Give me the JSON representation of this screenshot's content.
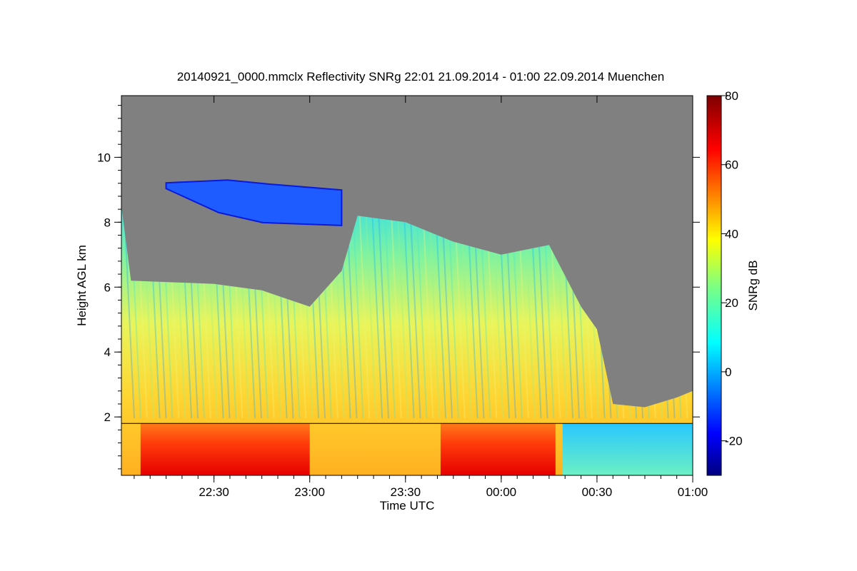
{
  "chart_data": {
    "type": "heatmap",
    "title": "20140921_0000.mmclx Reflectivity SNRg   22:01 21.09.2014 - 01:00 22.09.2014 Muenchen",
    "xlabel": "Time UTC",
    "ylabel": "Height AGL km",
    "colorbar_label": "SNRg dB",
    "xlim": [
      "22:01",
      "01:00"
    ],
    "ylim": [
      0.2,
      11.9
    ],
    "clim": [
      -30,
      80
    ],
    "x_ticks": [
      "22:30",
      "23:00",
      "23:30",
      "00:00",
      "00:30",
      "01:00"
    ],
    "y_ticks": [
      2,
      4,
      6,
      8,
      10
    ],
    "colorbar_ticks": [
      -20,
      0,
      20,
      40,
      60,
      80
    ],
    "colormap": "jet",
    "no_signal_color": "#808080",
    "grid": false,
    "echo_top_km": [
      {
        "time": "22:01",
        "height": 8.5
      },
      {
        "time": "22:04",
        "height": 6.2
      },
      {
        "time": "22:30",
        "height": 6.1
      },
      {
        "time": "22:45",
        "height": 5.9
      },
      {
        "time": "23:00",
        "height": 5.4
      },
      {
        "time": "23:10",
        "height": 6.5
      },
      {
        "time": "23:15",
        "height": 8.2
      },
      {
        "time": "23:30",
        "height": 8.0
      },
      {
        "time": "23:45",
        "height": 7.4
      },
      {
        "time": "00:00",
        "height": 7.0
      },
      {
        "time": "00:15",
        "height": 7.3
      },
      {
        "time": "00:25",
        "height": 5.4
      },
      {
        "time": "00:30",
        "height": 4.7
      },
      {
        "time": "00:35",
        "height": 2.4
      },
      {
        "time": "00:45",
        "height": 2.3
      },
      {
        "time": "00:55",
        "height": 2.6
      },
      {
        "time": "01:00",
        "height": 2.8
      }
    ],
    "cirrus_layer_km": {
      "from": "22:15",
      "to": "23:10",
      "bottom": 7.9,
      "top": 9.3
    },
    "strong_echo_periods": [
      {
        "from": "22:07",
        "to": "23:00",
        "top_km": 1.8,
        "snr_db": 65
      },
      {
        "from": "23:41",
        "to": "00:17",
        "top_km": 1.8,
        "snr_db": 68
      }
    ],
    "melting_layer_line_km": 1.8
  }
}
